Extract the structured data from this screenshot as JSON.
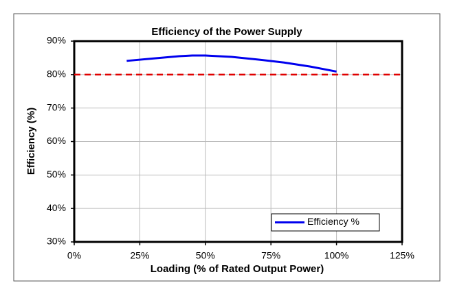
{
  "chart_data": {
    "type": "line",
    "title": "Efficiency of the Power Supply",
    "x_label": "Loading (% of Rated Output Power)",
    "y_label": "Efficiency (%)",
    "x": [
      20,
      30,
      40,
      45,
      50,
      60,
      70,
      80,
      90,
      100
    ],
    "series": [
      {
        "name": "Efficiency %",
        "color": "#0000ee",
        "values": [
          84.1,
          84.8,
          85.5,
          85.7,
          85.7,
          85.3,
          84.5,
          83.6,
          82.4,
          80.9
        ]
      }
    ],
    "reference_line": {
      "value": 80,
      "color": "#e00000"
    },
    "xlim": [
      0,
      125
    ],
    "xticks": [
      {
        "value": 0,
        "label": "0%"
      },
      {
        "value": 25,
        "label": "25%"
      },
      {
        "value": 50,
        "label": "50%"
      },
      {
        "value": 75,
        "label": "75%"
      },
      {
        "value": 100,
        "label": "100%"
      },
      {
        "value": 125,
        "label": "125%"
      }
    ],
    "ylim": [
      30,
      90
    ],
    "yticks": [
      {
        "value": 30,
        "label": "30%"
      },
      {
        "value": 40,
        "label": "40%"
      },
      {
        "value": 50,
        "label": "50%"
      },
      {
        "value": 60,
        "label": "60%"
      },
      {
        "value": 70,
        "label": "70%"
      },
      {
        "value": 80,
        "label": "80%"
      },
      {
        "value": 90,
        "label": "90%"
      }
    ],
    "grid": true,
    "legend": "lower right"
  }
}
